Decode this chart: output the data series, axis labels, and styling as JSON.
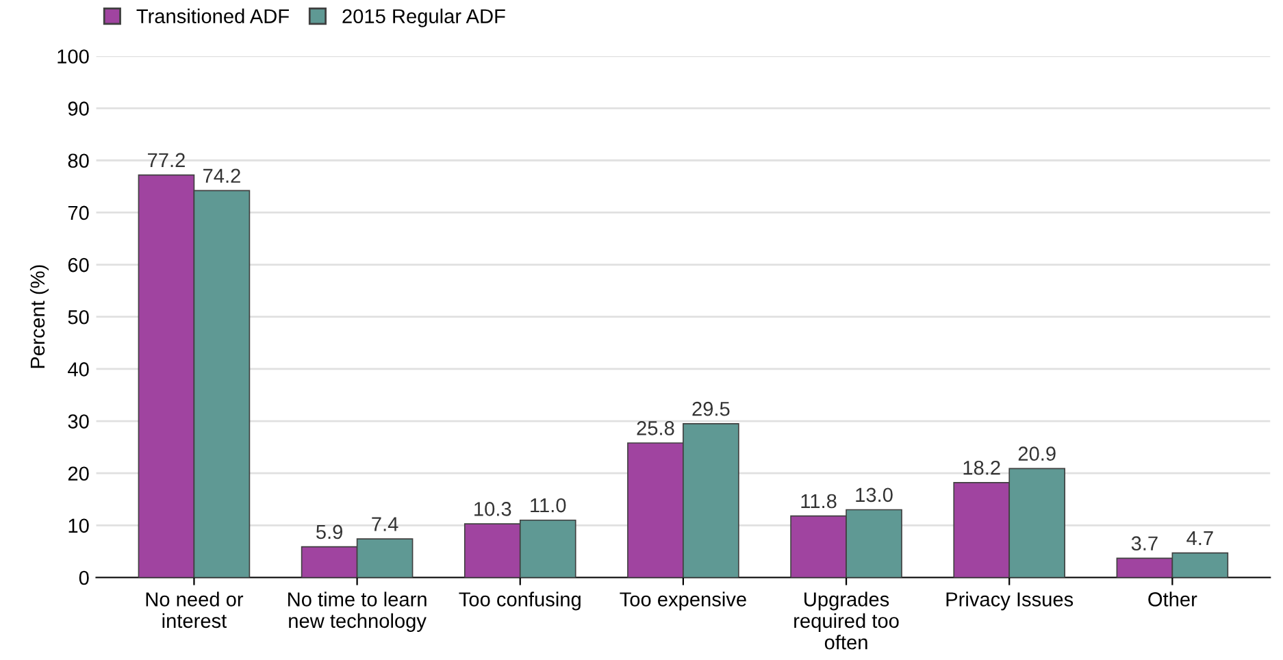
{
  "chart_data": {
    "type": "bar",
    "categories": [
      "No need or interest",
      "No time to learn new technology",
      "Too confusing",
      "Too expensive",
      "Upgrades required too often",
      "Privacy Issues",
      "Other"
    ],
    "series": [
      {
        "name": "Transitioned ADF",
        "color": "#a044a0",
        "values": [
          77.2,
          5.9,
          10.3,
          25.8,
          11.8,
          18.2,
          3.7
        ],
        "value_labels": [
          "77.2",
          "5.9",
          "10.3",
          "25.8",
          "11.8",
          "18.2",
          "3.7"
        ]
      },
      {
        "name": "2015 Regular ADF",
        "color": "#5f9994",
        "values": [
          74.2,
          7.4,
          11.0,
          29.5,
          13.0,
          20.9,
          4.7
        ],
        "value_labels": [
          "74.2",
          "7.4",
          "11.0",
          "29.5",
          "13.0",
          "20.9",
          "4.7"
        ]
      }
    ],
    "ylabel": "Percent (%)",
    "ylim": [
      0,
      100
    ],
    "yticks": [
      0,
      10,
      20,
      30,
      40,
      50,
      60,
      70,
      80,
      90,
      100
    ],
    "grid": "y",
    "legend": "top left"
  }
}
